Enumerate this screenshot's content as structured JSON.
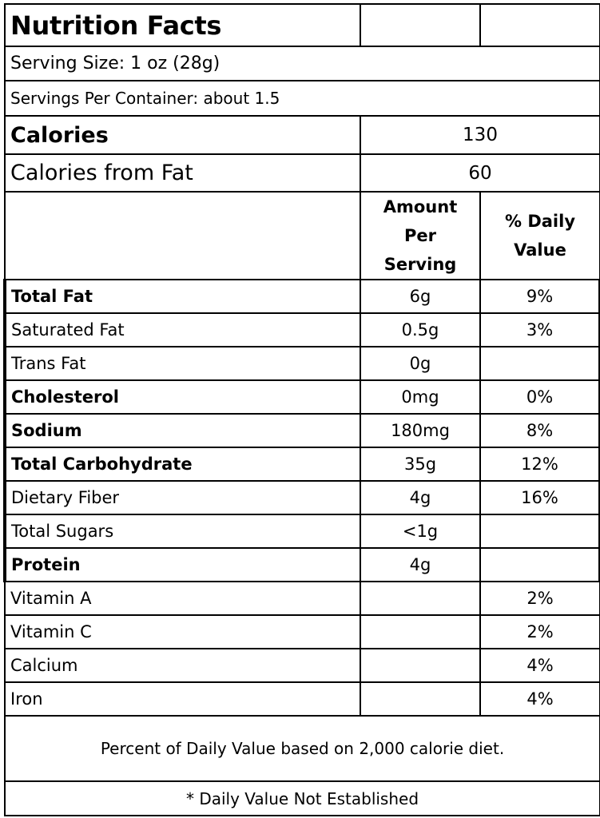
{
  "title": "Nutrition Facts",
  "serving_size": "Serving Size: 1 oz (28g)",
  "servings_per_container": "Servings Per Container: about 1.5",
  "calories": {
    "label": "Calories",
    "value": "130"
  },
  "calories_from_fat": {
    "label": "Calories from Fat",
    "value": "60"
  },
  "headers": {
    "amount": "Amount Per Serving",
    "daily_value": "% Daily Value"
  },
  "nutrients": [
    {
      "name": "Total Fat",
      "amount": "6g",
      "dv": "9%"
    },
    {
      "name": "Saturated Fat",
      "amount": "0.5g",
      "dv": "3%"
    },
    {
      "name": "Trans Fat",
      "amount": "0g",
      "dv": ""
    },
    {
      "name": "Cholesterol",
      "amount": "0mg",
      "dv": "0%"
    },
    {
      "name": "Sodium",
      "amount": "180mg",
      "dv": "8%"
    },
    {
      "name": "Total Carbohydrate",
      "amount": "35g",
      "dv": "12%"
    },
    {
      "name": "Dietary Fiber",
      "amount": "4g",
      "dv": "16%"
    },
    {
      "name": "Total Sugars",
      "amount": "<1g",
      "dv": ""
    },
    {
      "name": "Protein",
      "amount": "4g",
      "dv": ""
    }
  ],
  "vitamins": [
    {
      "name": "Vitamin A",
      "amount": "",
      "dv": "2%"
    },
    {
      "name": "Vitamin C",
      "amount": "",
      "dv": "2%"
    },
    {
      "name": "Calcium",
      "amount": "",
      "dv": "4%"
    },
    {
      "name": "Iron",
      "amount": "",
      "dv": "4%"
    }
  ],
  "footnote": "Percent of Daily Value based on 2,000 calorie diet.",
  "note": "* Daily Value Not Established"
}
